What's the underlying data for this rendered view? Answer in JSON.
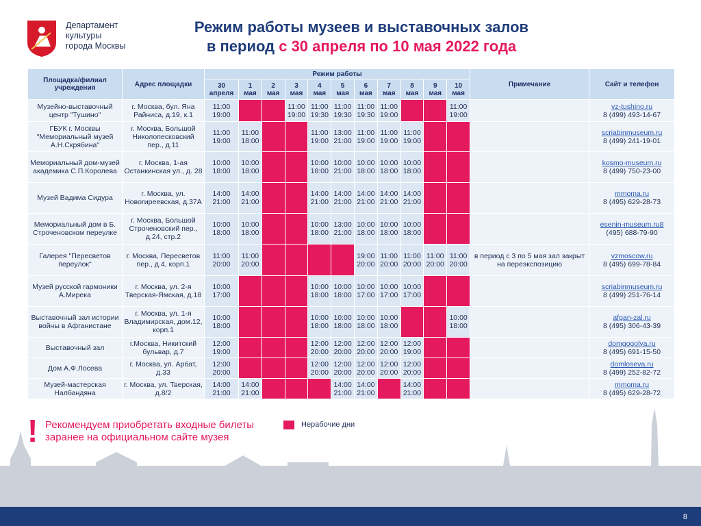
{
  "header": {
    "logo_text": [
      "Департамент",
      "культуры",
      "города Москвы"
    ],
    "title_line1": "Режим работы музеев и выставочных залов",
    "title_line2_prefix": "в период",
    "title_line2_highlight": "с 30 апреля по 10 мая 2022 года"
  },
  "table": {
    "columns": {
      "venue": "Площадка/филиал учреждения",
      "address": "Адрес площадки",
      "schedule": "Режим работы",
      "note": "Примечание",
      "contacts": "Сайт и телефон"
    },
    "days": [
      {
        "day": "30",
        "month": "апреля"
      },
      {
        "day": "1",
        "month": "мая"
      },
      {
        "day": "2",
        "month": "мая"
      },
      {
        "day": "3",
        "month": "мая"
      },
      {
        "day": "4",
        "month": "мая"
      },
      {
        "day": "5",
        "month": "мая"
      },
      {
        "day": "6",
        "month": "мая"
      },
      {
        "day": "7",
        "month": "мая"
      },
      {
        "day": "8",
        "month": "мая"
      },
      {
        "day": "9",
        "month": "мая"
      },
      {
        "day": "10",
        "month": "мая"
      }
    ],
    "rows": [
      {
        "venue": "Музейно-выставочный центр \"Тушино\"",
        "address": "г. Москва, бул. Яна Райниса, д.19, к.1",
        "hours": [
          [
            "11:00",
            "19:00"
          ],
          null,
          null,
          [
            "11:00",
            "19:00"
          ],
          [
            "11:00",
            "19:30"
          ],
          [
            "11:00",
            "19:30"
          ],
          [
            "11:00",
            "19:30"
          ],
          [
            "11:00",
            "19:00"
          ],
          null,
          null,
          [
            "11:00",
            "19:00"
          ]
        ],
        "site": "vz-tushino.ru",
        "phone": "8 (499) 493-14-67"
      },
      {
        "venue": "ГБУК г. Москвы \"Мемориальный музей А.Н.Скрябина\"",
        "address": "г. Москва, Большой Николопесковский пер., д.11",
        "hours": [
          [
            "11:00",
            "19:00"
          ],
          [
            "11:00",
            "18:00"
          ],
          null,
          null,
          [
            "11:00",
            "19:00"
          ],
          [
            "13:00",
            "21:00"
          ],
          [
            "11:00",
            "19:00"
          ],
          [
            "11:00",
            "19:00"
          ],
          [
            "11:00",
            "19:00"
          ],
          null,
          null
        ],
        "site": "scriabinmuseum.ru",
        "phone": "8 (499) 241-19-01"
      },
      {
        "venue": "Мемориальный дом-музей академика С.П.Королева",
        "address": "г. Москва, 1-ая Останкинская ул., д. 28",
        "hours": [
          [
            "10:00",
            "18:00"
          ],
          [
            "10:00",
            "18:00"
          ],
          null,
          null,
          [
            "10:00",
            "18:00"
          ],
          [
            "10:00",
            "21:00"
          ],
          [
            "10:00",
            "18:00"
          ],
          [
            "10:00",
            "18:00"
          ],
          [
            "10:00",
            "18:00"
          ],
          null,
          null
        ],
        "site": "kosmo-museum.ru",
        "phone": "8 (499) 750-23-00"
      },
      {
        "venue": "Музей Вадима Сидура",
        "address": "г. Москва, ул. Новогиреевская, д.37А",
        "hours": [
          [
            "14:00",
            "21:00"
          ],
          [
            "14:00",
            "21:00"
          ],
          null,
          null,
          [
            "14:00",
            "21:00"
          ],
          [
            "14:00",
            "21:00"
          ],
          [
            "14:00",
            "21:00"
          ],
          [
            "14:00",
            "21:00"
          ],
          [
            "14:00",
            "21:00"
          ],
          null,
          null
        ],
        "site": "mmoma.ru",
        "phone": "8 (495) 629-28-73"
      },
      {
        "venue": "Мемориальный дом в Б. Строченовском переулке",
        "address": "г. Москва, Большой Строченовский пер., д.24, стр.2",
        "hours": [
          [
            "10:00",
            "18:00"
          ],
          [
            "10:00",
            "18:00"
          ],
          null,
          null,
          [
            "10:00",
            "18:00"
          ],
          [
            "13:00",
            "21:00"
          ],
          [
            "10:00",
            "18:00"
          ],
          [
            "10:00",
            "18:00"
          ],
          [
            "10:00",
            "18:00"
          ],
          null,
          null
        ],
        "site": "esenin-museum.ru8",
        "phone": "(495) 688-79-90"
      },
      {
        "venue": "Галерея \"Пересветов переулок\"",
        "address": "г. Москва, Пересветов пер., д.4, корп.1",
        "hours": [
          [
            "11:00",
            "20:00"
          ],
          [
            "11:00",
            "20:00"
          ],
          null,
          null,
          null,
          null,
          [
            "19:00",
            "20:00"
          ],
          [
            "11:00",
            "20:00"
          ],
          [
            "11:00",
            "20:00"
          ],
          [
            "11:00",
            "20:00"
          ],
          [
            "11:00",
            "20:00"
          ]
        ],
        "note": "в период с 3 по 5 мая зал закрыт на переэкспозицию",
        "site": "vzmoscow.ru",
        "phone": "8 (495) 699-78-84"
      },
      {
        "venue": "Музей русской гармоники А.Мирека",
        "address": "г. Москва, ул. 2-я Тверская-Ямская, д.18",
        "hours": [
          [
            "10:00",
            "17:00"
          ],
          null,
          null,
          null,
          [
            "10:00",
            "18:00"
          ],
          [
            "10:00",
            "18:00"
          ],
          [
            "10:00",
            "17:00"
          ],
          [
            "10:00",
            "17:00"
          ],
          [
            "10:00",
            "17:00"
          ],
          null,
          null
        ],
        "site": "scriabinmuseum.ru",
        "phone": "8 (499) 251-76-14"
      },
      {
        "venue": "Выставочный зал истории войны в Афганистане",
        "address": "г. Москва, ул. 1-я Владимирская, дом.12, корп.1",
        "hours": [
          [
            "10:00",
            "18:00"
          ],
          null,
          null,
          null,
          [
            "10:00",
            "18:00"
          ],
          [
            "10:00",
            "18:00"
          ],
          [
            "10:00",
            "18:00"
          ],
          [
            "10:00",
            "18:00"
          ],
          null,
          null,
          [
            "10:00",
            "18:00"
          ]
        ],
        "site": "afgan-zal.ru",
        "phone": "8 (495) 306-43-39"
      },
      {
        "venue": "Выставочный зал",
        "address": "г.Москва, Никитский бульвар, д.7",
        "hours": [
          [
            "12:00",
            "19:00"
          ],
          null,
          null,
          null,
          [
            "12:00",
            "20:00"
          ],
          [
            "12:00",
            "20:00"
          ],
          [
            "12:00",
            "20:00"
          ],
          [
            "12:00",
            "20:00"
          ],
          [
            "12:00",
            "19:00"
          ],
          null,
          null
        ],
        "site": "domgogolya.ru",
        "phone": "8 (495) 691-15-50"
      },
      {
        "venue": "Дом А.Ф.Лосева",
        "address": "г. Москва, ул. Арбат, д.33",
        "hours": [
          [
            "12:00",
            "20:00"
          ],
          null,
          null,
          null,
          [
            "12:00",
            "20:00"
          ],
          [
            "12:00",
            "20:00"
          ],
          [
            "12:00",
            "20:00"
          ],
          [
            "12:00",
            "20:00"
          ],
          [
            "12:00",
            "20:00"
          ],
          null,
          null
        ],
        "site": "domloseva.ru",
        "phone": "8 (499) 252-82-72"
      },
      {
        "venue": "Музей-мастерская Налбандяна",
        "address": "г. Москва, ул. Тверская, д.8/2",
        "hours": [
          [
            "14:00",
            "21:00"
          ],
          [
            "14:00",
            "21:00"
          ],
          null,
          null,
          null,
          [
            "14:00",
            "21:00"
          ],
          [
            "14:00",
            "21:00"
          ],
          null,
          [
            "14:00",
            "21:00"
          ],
          null,
          null
        ],
        "site": "mmoma.ru",
        "phone": "8 (495) 629-28-72"
      }
    ]
  },
  "footer": {
    "recommendation": [
      "Рекомендуем приобретать входные билеты",
      "заранее на официальном сайте музея"
    ],
    "legend": "Нерабочие дни",
    "page": "8"
  }
}
